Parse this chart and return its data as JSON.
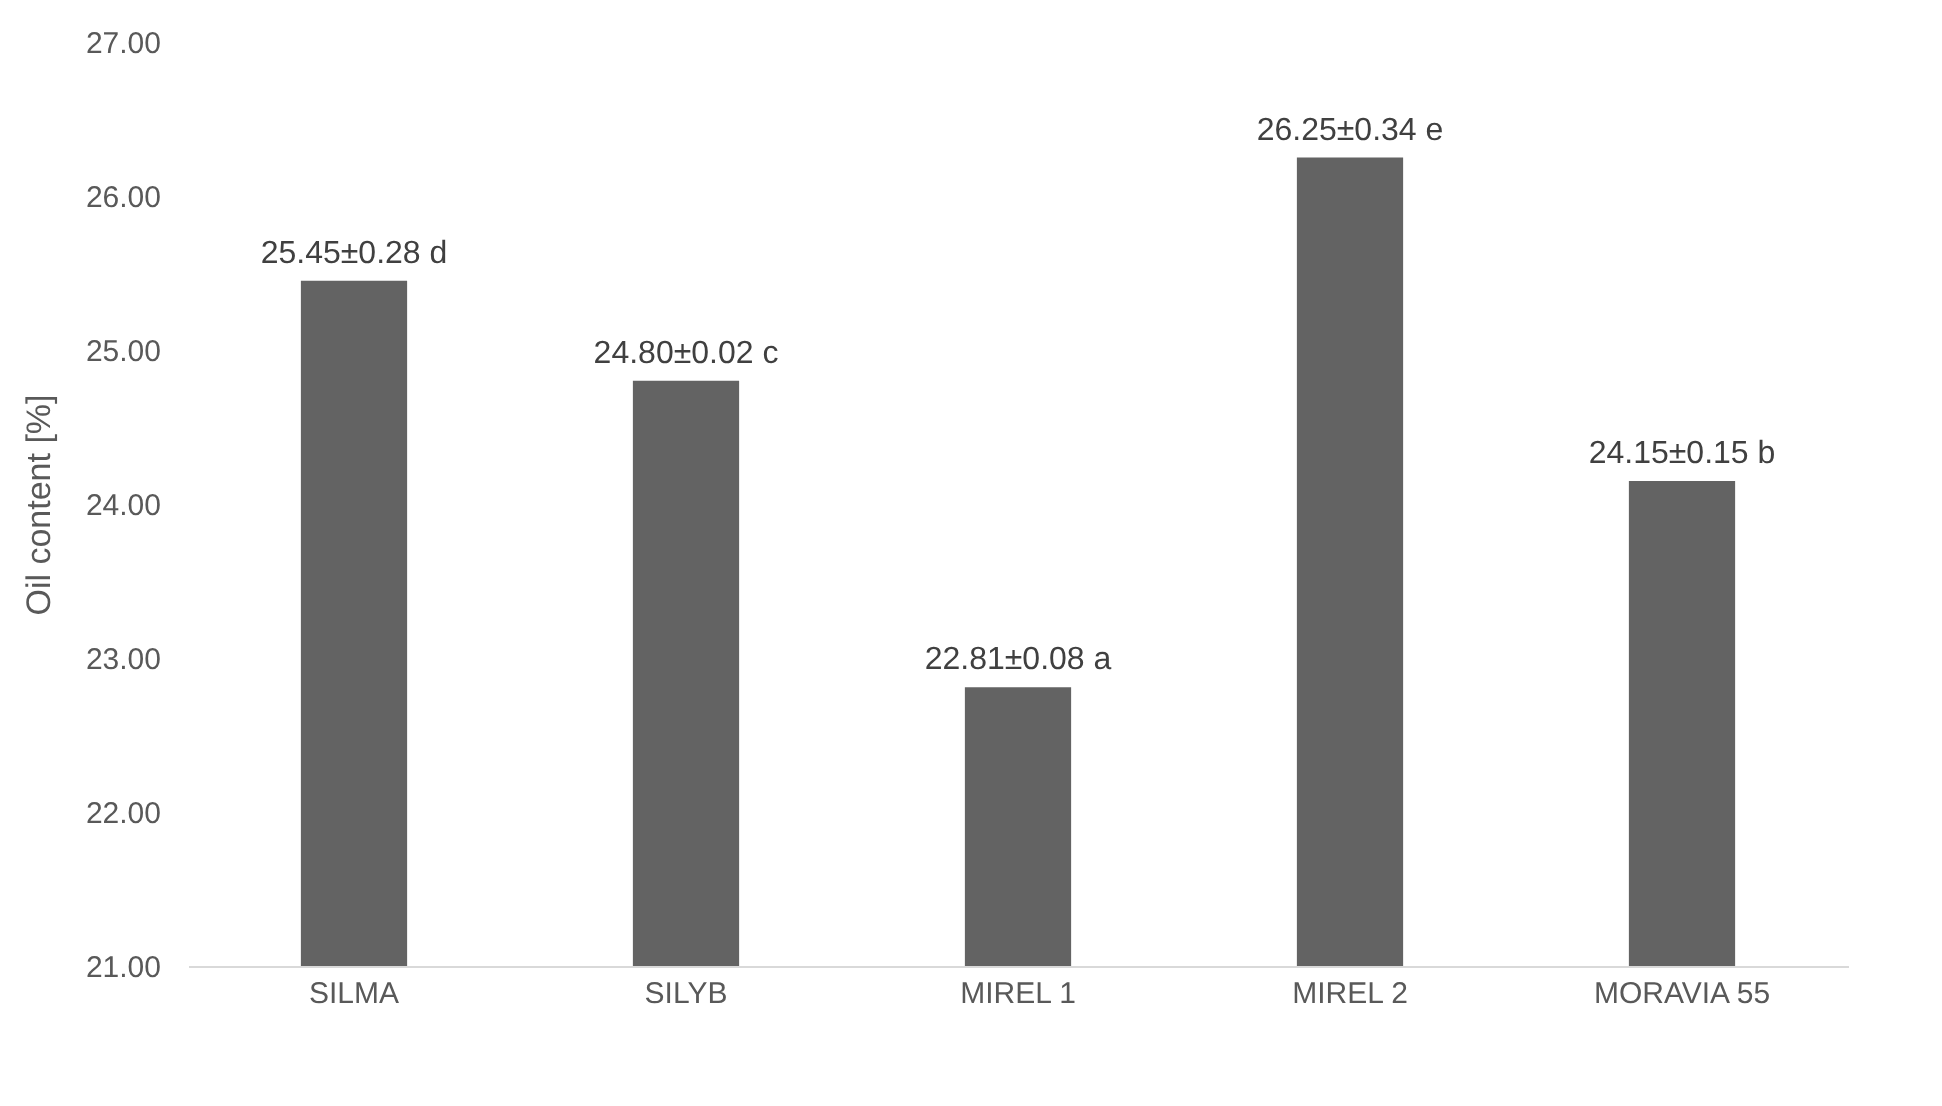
{
  "chart_data": {
    "type": "bar",
    "ylabel": "Oil content [%]",
    "categories": [
      "SILMA",
      "SILYB",
      "MIREL 1",
      "MIREL 2",
      "MORAVIA 55"
    ],
    "values": [
      25.45,
      24.8,
      22.81,
      26.25,
      24.15
    ],
    "value_labels": [
      "25.45±0.28 d",
      "24.80±0.02 c",
      "22.81±0.08 a",
      "26.25±0.34 e",
      "24.15±0.15 b"
    ],
    "color": "#636363",
    "ylim": [
      21,
      27
    ],
    "yticks": [
      {
        "value": 21,
        "label": "21.00"
      },
      {
        "value": 22,
        "label": "22.00"
      },
      {
        "value": 23,
        "label": "23.00"
      },
      {
        "value": 24,
        "label": "24.00"
      },
      {
        "value": 25,
        "label": "25.00"
      },
      {
        "value": 26,
        "label": "26.00"
      },
      {
        "value": 27,
        "label": "27.00"
      }
    ],
    "grid": false
  }
}
